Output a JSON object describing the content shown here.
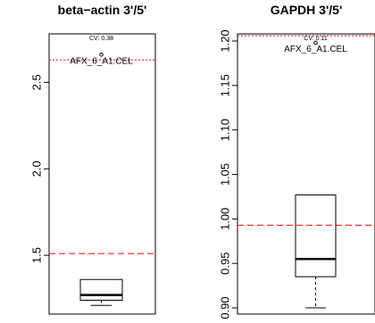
{
  "chart_data": [
    {
      "type": "box",
      "title": "beta−actin 3'/5'",
      "ylim": [
        1.16,
        2.78
      ],
      "yticks": [
        1.5,
        2.0,
        2.5
      ],
      "ytick_labels": [
        "1.5",
        "2.0",
        "2.5"
      ],
      "box": {
        "whisker_low": 1.21,
        "q1": 1.24,
        "median": 1.27,
        "q3": 1.36,
        "whisker_high": 1.36
      },
      "outliers": [
        {
          "value": 2.66,
          "label": "AFX_6_A1.CEL"
        }
      ],
      "cv_label": "CV: 0.38",
      "threshold_red_dotted": 2.63,
      "threshold_red_dashed": 1.51,
      "colors": {
        "threshold": "#ff0000",
        "box": "#000000"
      }
    },
    {
      "type": "box",
      "title": "GAPDH 3'/5'",
      "ylim": [
        0.893,
        1.208
      ],
      "yticks": [
        0.9,
        0.95,
        1.0,
        1.05,
        1.1,
        1.15,
        1.2
      ],
      "ytick_labels": [
        "0.90",
        "0.95",
        "1.00",
        "1.05",
        "1.10",
        "1.15",
        "1.20"
      ],
      "box": {
        "whisker_low": 0.9,
        "q1": 0.935,
        "median": 0.955,
        "q3": 1.027,
        "whisker_high": 1.027
      },
      "outliers": [
        {
          "value": 1.198,
          "label": "AFX_6_A1.CEL"
        }
      ],
      "cv_label": "CV: 0.11",
      "threshold_red_dotted": 1.206,
      "threshold_red_dashed": 0.993,
      "colors": {
        "threshold": "#ff0000",
        "box": "#000000"
      }
    }
  ]
}
